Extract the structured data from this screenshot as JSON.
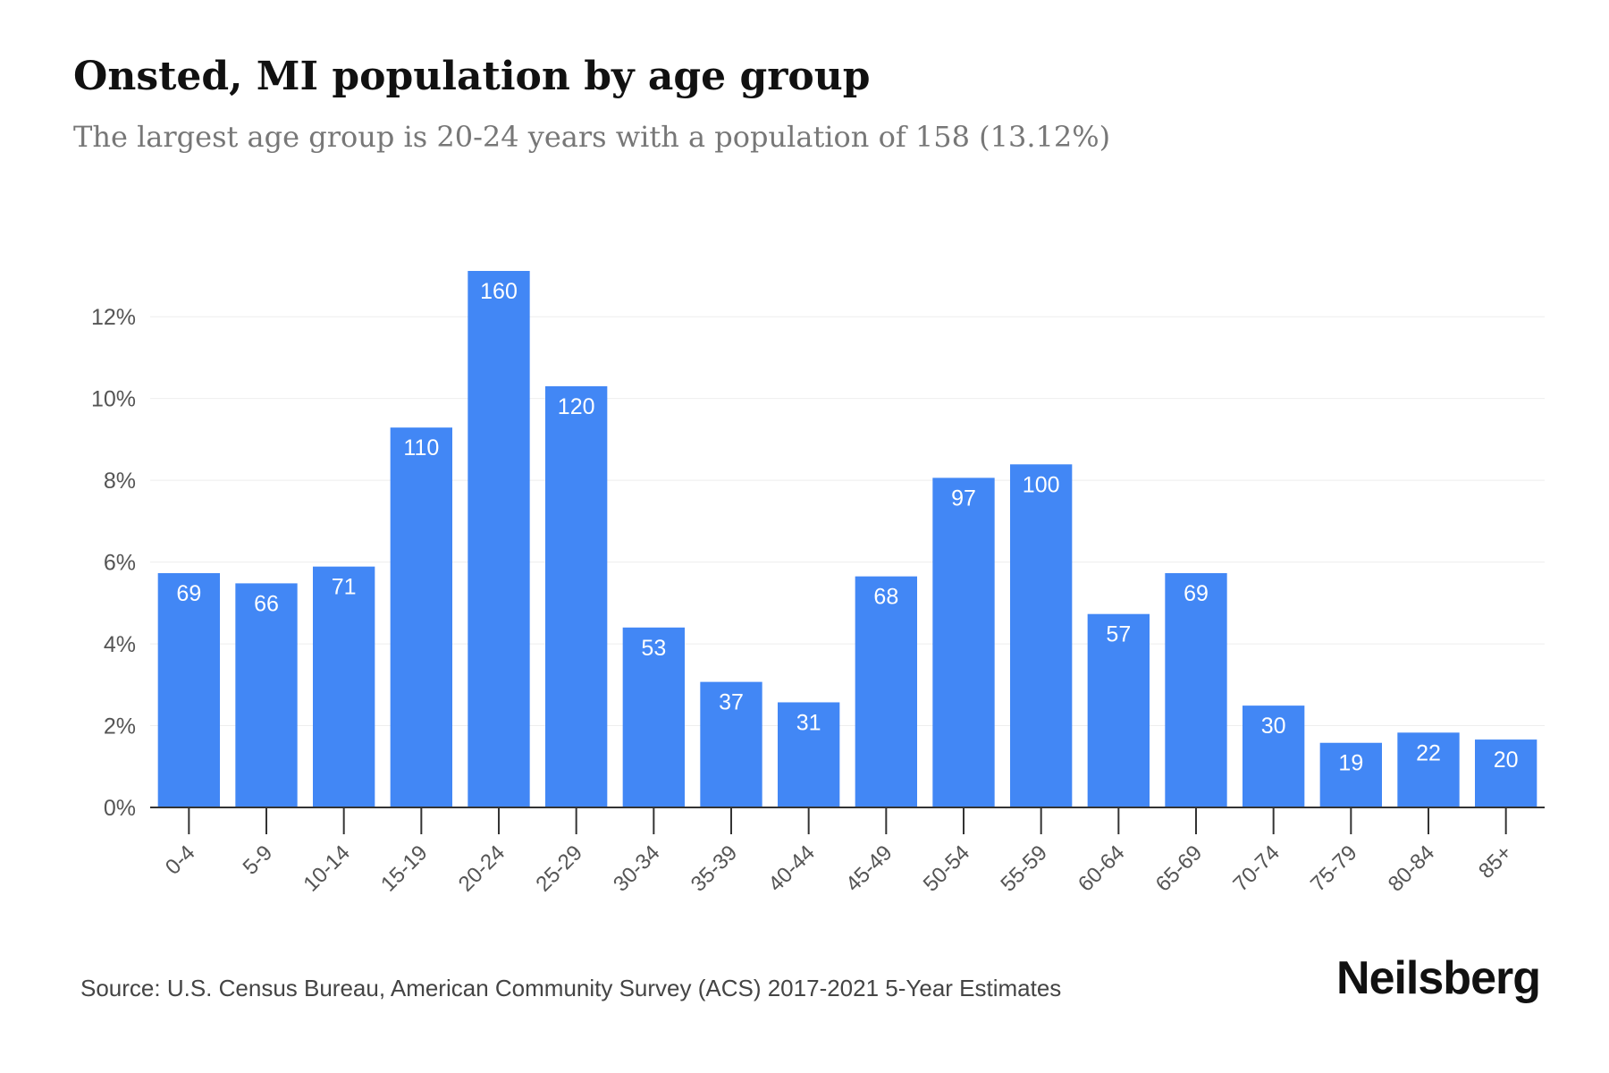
{
  "header": {
    "title": "Onsted, MI population by age group",
    "subtitle": "The largest age group is 20-24 years with a population of 158 (13.12%)"
  },
  "footer": {
    "source": "Source: U.S. Census Bureau, American Community Survey (ACS) 2017-2021 5-Year Estimates",
    "brand": "Neilsberg"
  },
  "colors": {
    "bar": "#4287f5",
    "label": "#ffffff",
    "grid": "#eeeeee",
    "axis": "#333333",
    "tick_text": "#555555"
  },
  "chart_data": {
    "type": "bar",
    "title": "Onsted, MI population by age group",
    "subtitle": "The largest age group is 20-24 years with a population of 158 (13.12%)",
    "categories": [
      "0-4",
      "5-9",
      "10-14",
      "15-19",
      "20-24",
      "25-29",
      "30-34",
      "35-39",
      "40-44",
      "45-49",
      "50-54",
      "55-59",
      "60-64",
      "65-69",
      "70-74",
      "75-79",
      "80-84",
      "85+"
    ],
    "percent_values": [
      5.73,
      5.48,
      5.89,
      9.29,
      13.12,
      10.3,
      4.4,
      3.07,
      2.57,
      5.65,
      8.06,
      8.39,
      4.73,
      5.73,
      2.49,
      1.58,
      1.83,
      1.66
    ],
    "data_labels": [
      "69",
      "66",
      "71",
      "110",
      "160",
      "120",
      "53",
      "37",
      "31",
      "68",
      "97",
      "100",
      "57",
      "69",
      "30",
      "19",
      "22",
      "20"
    ],
    "y_ticks": [
      "0%",
      "2%",
      "4%",
      "6%",
      "8%",
      "10%",
      "12%"
    ],
    "y_tick_values": [
      0,
      2,
      4,
      6,
      8,
      10,
      12
    ],
    "ylim": [
      0,
      13.12
    ],
    "grid": true,
    "legend": "none"
  }
}
